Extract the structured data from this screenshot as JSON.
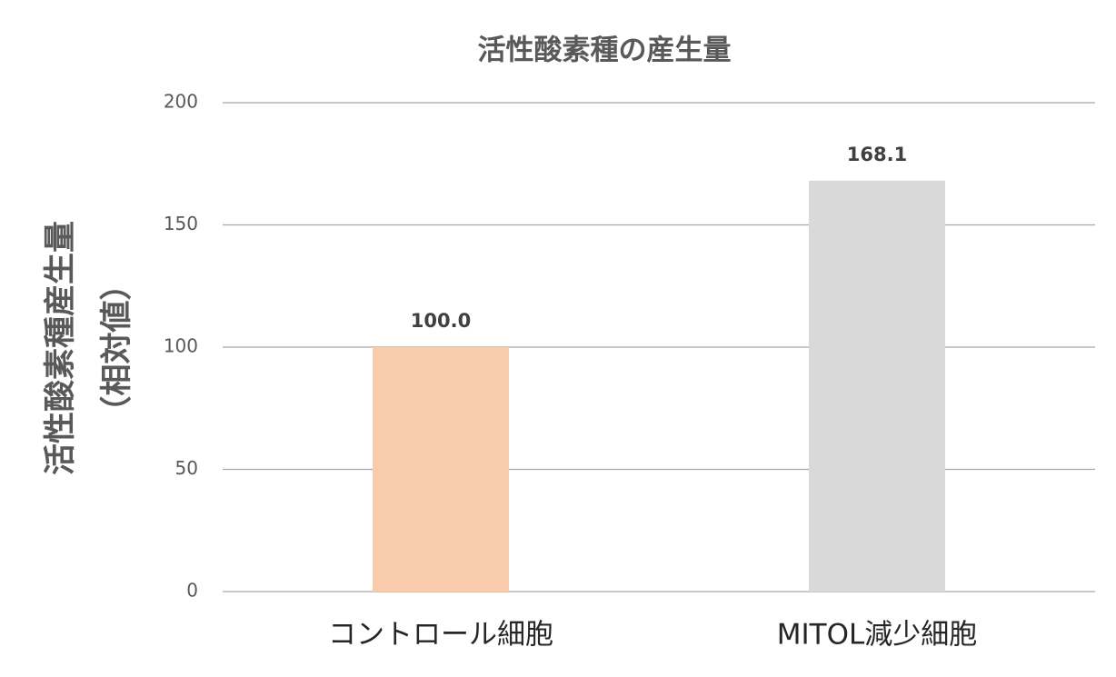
{
  "chart_data": {
    "type": "bar",
    "title": "活性酸素種の産生量",
    "ylabel": [
      "活性酸素種産生量",
      "（相対値）"
    ],
    "categories": [
      "コントロール細胞",
      "MITOL減少細胞"
    ],
    "values": [
      100.0,
      168.1
    ],
    "value_labels": [
      "100.0",
      "168.1"
    ],
    "colors": [
      "#f8cbad",
      "#d9d9d9"
    ],
    "ylim": [
      0,
      200
    ],
    "yticks": [
      0,
      50,
      100,
      150,
      200
    ],
    "grid": true
  }
}
